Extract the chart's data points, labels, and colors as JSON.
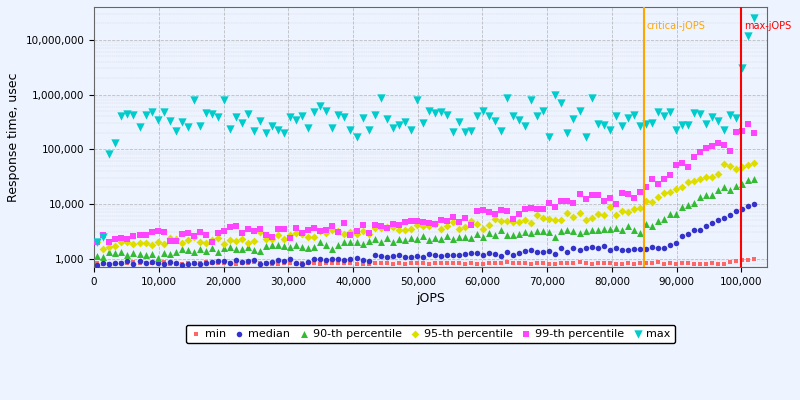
{
  "title": "",
  "xlabel": "jOPS",
  "ylabel": "Response time, usec",
  "xlim": [
    0,
    104000
  ],
  "ylim_log": [
    700,
    40000000
  ],
  "critical_jops": 85000,
  "max_jops": 100000,
  "critical_label": "critical-jOPS",
  "max_label": "max-jOPS",
  "critical_color": "#FFA500",
  "max_color": "#FF0000",
  "background_color": "#EEF4FF",
  "plot_bg_color": "#EEF4FF",
  "grid_color": "#999999",
  "series": {
    "min": {
      "color": "#FF6666",
      "marker": "s",
      "markersize": 2.5,
      "label": "min"
    },
    "median": {
      "color": "#3333CC",
      "marker": "o",
      "markersize": 4,
      "label": "median"
    },
    "p90": {
      "color": "#33BB33",
      "marker": "^",
      "markersize": 5,
      "label": "90-th percentile"
    },
    "p95": {
      "color": "#DDDD00",
      "marker": "D",
      "markersize": 4,
      "label": "95-th percentile"
    },
    "p99": {
      "color": "#FF44FF",
      "marker": "s",
      "markersize": 4,
      "label": "99-th percentile"
    },
    "max": {
      "color": "#00CCCC",
      "marker": "v",
      "markersize": 6,
      "label": "max"
    }
  },
  "xticks": [
    0,
    10000,
    20000,
    30000,
    40000,
    50000,
    60000,
    70000,
    80000,
    90000,
    100000
  ],
  "yticks": [
    1000,
    10000,
    100000,
    1000000,
    10000000
  ]
}
